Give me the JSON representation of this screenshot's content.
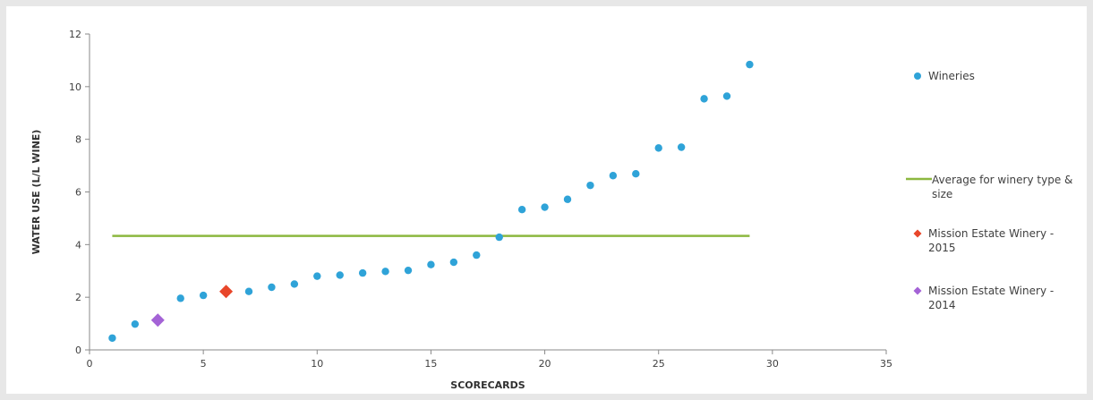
{
  "chart_data": {
    "type": "scatter",
    "title": "",
    "xlabel": "SCORECARDS",
    "ylabel": "WATER USE (L/L WINE)",
    "xlim": [
      0,
      35
    ],
    "ylim": [
      0,
      12
    ],
    "xticks": [
      "0",
      "5",
      "10",
      "15",
      "20",
      "25",
      "30",
      "35"
    ],
    "yticks": [
      "0",
      "2",
      "4",
      "6",
      "8",
      "10",
      "12"
    ],
    "grid": false,
    "legend_position": "right",
    "series": [
      {
        "name": "Wineries",
        "marker": "circle",
        "color": "#2fa3d8",
        "points": [
          {
            "x": 1,
            "y": 0.45
          },
          {
            "x": 2,
            "y": 0.98
          },
          {
            "x": 4,
            "y": 1.96
          },
          {
            "x": 5,
            "y": 2.07
          },
          {
            "x": 7,
            "y": 2.22
          },
          {
            "x": 8,
            "y": 2.38
          },
          {
            "x": 9,
            "y": 2.5
          },
          {
            "x": 10,
            "y": 2.8
          },
          {
            "x": 11,
            "y": 2.84
          },
          {
            "x": 12,
            "y": 2.92
          },
          {
            "x": 13,
            "y": 2.98
          },
          {
            "x": 14,
            "y": 3.02
          },
          {
            "x": 15,
            "y": 3.24
          },
          {
            "x": 16,
            "y": 3.33
          },
          {
            "x": 17,
            "y": 3.6
          },
          {
            "x": 18,
            "y": 4.28
          },
          {
            "x": 19,
            "y": 5.33
          },
          {
            "x": 20,
            "y": 5.42
          },
          {
            "x": 21,
            "y": 5.72
          },
          {
            "x": 22,
            "y": 6.25
          },
          {
            "x": 23,
            "y": 6.62
          },
          {
            "x": 24,
            "y": 6.69
          },
          {
            "x": 25,
            "y": 7.67
          },
          {
            "x": 26,
            "y": 7.7
          },
          {
            "x": 27,
            "y": 9.54
          },
          {
            "x": 28,
            "y": 9.64
          },
          {
            "x": 29,
            "y": 10.84
          }
        ]
      },
      {
        "name": "Average for winery type & size",
        "marker": "line",
        "color": "#8cb83f",
        "points": [
          {
            "x": 1,
            "y": 4.33
          },
          {
            "x": 29,
            "y": 4.33
          }
        ]
      },
      {
        "name": "Mission Estate Winery - 2015",
        "marker": "diamond",
        "color": "#e8462a",
        "points": [
          {
            "x": 6,
            "y": 2.22
          }
        ]
      },
      {
        "name": "Mission Estate Winery - 2014",
        "marker": "diamond",
        "color": "#a463d6",
        "points": [
          {
            "x": 3,
            "y": 1.13
          }
        ]
      }
    ],
    "legend": [
      {
        "label_lines": [
          "Wineries"
        ],
        "marker": "circle",
        "color": "#2fa3d8"
      },
      {
        "label_lines": [
          "Average for winery type &",
          "size"
        ],
        "marker": "line",
        "color": "#8cb83f"
      },
      {
        "label_lines": [
          "Mission Estate Winery -",
          "2015"
        ],
        "marker": "diamond",
        "color": "#e8462a"
      },
      {
        "label_lines": [
          "Mission Estate Winery -",
          "2014"
        ],
        "marker": "diamond",
        "color": "#a463d6"
      }
    ]
  }
}
